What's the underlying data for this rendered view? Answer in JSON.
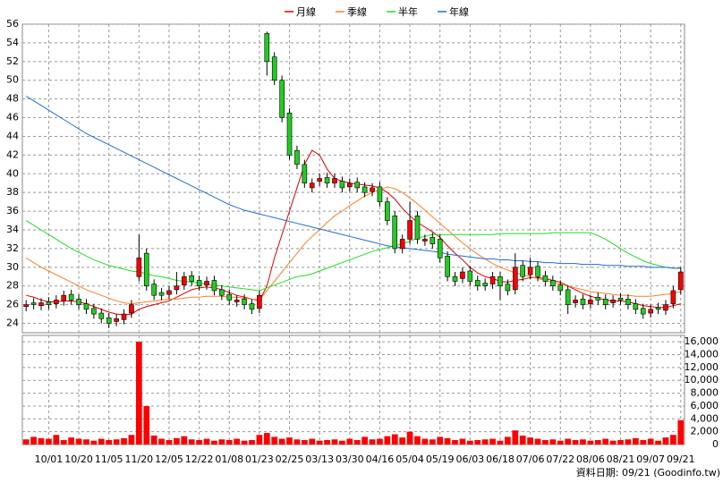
{
  "chart_data": [
    {
      "type": "candlestick",
      "categories": [
        null,
        null,
        null,
        "10/01",
        null,
        null,
        null,
        "10/20",
        null,
        null,
        null,
        "11/05",
        null,
        null,
        null,
        "11/20",
        null,
        null,
        null,
        "12/05",
        null,
        null,
        null,
        "12/22",
        null,
        null,
        null,
        "01/08",
        null,
        null,
        null,
        "01/23",
        null,
        null,
        null,
        "02/25",
        null,
        null,
        null,
        "03/13",
        null,
        null,
        null,
        "03/30",
        null,
        null,
        null,
        "04/16",
        null,
        null,
        null,
        "05/04",
        null,
        null,
        null,
        "05/19",
        null,
        null,
        null,
        "06/03",
        null,
        null,
        null,
        "06/18",
        null,
        null,
        null,
        "07/06",
        null,
        null,
        null,
        "07/22",
        null,
        null,
        null,
        "08/06",
        null,
        null,
        null,
        "08/21",
        null,
        null,
        null,
        "09/07",
        null,
        null,
        null,
        "09/21"
      ],
      "open": [
        25.8,
        26.2,
        25.9,
        26.3,
        26.1,
        26.4,
        27.1,
        26.6,
        26.1,
        25.6,
        25.1,
        24.6,
        24.2,
        24.4,
        25.1,
        29,
        31.5,
        28.2,
        27.3,
        27.1,
        27.6,
        28.1,
        29.1,
        28.6,
        28.1,
        28.6,
        27.6,
        27.1,
        26.3,
        26.6,
        26.1,
        25.6,
        55,
        52.5,
        50,
        46.5,
        42.5,
        41,
        38.5,
        39.2,
        39.6,
        39,
        39.2,
        38.6,
        39.1,
        38.6,
        38.1,
        38.6,
        37,
        35.5,
        32,
        33,
        35.5,
        32.8,
        33.2,
        33,
        31.2,
        29,
        28.8,
        29.6,
        28.6,
        28.3,
        28.2,
        29,
        28.2,
        27.6,
        30.2,
        29.2,
        30.1,
        29.1,
        28.6,
        28.1,
        27.6,
        26.2,
        26.6,
        26.1,
        26.8,
        26.6,
        26.2,
        26.7,
        26.6,
        26.1,
        25.6,
        25.1,
        25.7,
        25.4,
        26.1,
        27.6
      ],
      "high": [
        26.5,
        26.7,
        26.7,
        26.8,
        27,
        27.5,
        27.6,
        27.1,
        26.6,
        26.1,
        25.6,
        25.1,
        25,
        25.5,
        26.5,
        33.5,
        32,
        28.7,
        27.8,
        28,
        29.5,
        29.5,
        29.6,
        29.1,
        29,
        29.1,
        28.1,
        27.6,
        27,
        27.1,
        26.6,
        27.5,
        55.2,
        53,
        50.5,
        47,
        43,
        41.5,
        39.5,
        40,
        40.1,
        40,
        39.7,
        39.5,
        39.6,
        39.1,
        39,
        39.1,
        37.5,
        36,
        33.5,
        37,
        36,
        33.5,
        33.7,
        33.5,
        31.7,
        29.5,
        30,
        30.1,
        29.1,
        28.8,
        29.5,
        29.5,
        28.7,
        31.5,
        30.7,
        31,
        30.6,
        29.6,
        29.1,
        28.6,
        28.1,
        27,
        27.1,
        27,
        27.3,
        27.1,
        27,
        27.2,
        27.1,
        26.6,
        26.1,
        26,
        26.2,
        26.5,
        28,
        30
      ],
      "low": [
        25.3,
        25.5,
        25.4,
        25.5,
        25.6,
        25.9,
        26,
        25.5,
        25,
        24.5,
        24,
        23.5,
        23.7,
        23.9,
        24.6,
        28.5,
        27.5,
        26.5,
        26.5,
        26.6,
        27.1,
        27.6,
        28,
        27.5,
        27.6,
        27,
        26.5,
        26,
        25.8,
        25.5,
        25,
        25.1,
        50.5,
        49.5,
        45.5,
        41.5,
        40.5,
        38.5,
        38,
        38.7,
        38.5,
        38.5,
        38,
        38.1,
        38,
        37.5,
        37.6,
        36.5,
        34.5,
        31.5,
        31.5,
        32.5,
        32.5,
        32.3,
        32,
        30.5,
        28.5,
        28,
        28.3,
        28,
        27.5,
        27.5,
        27.7,
        26.5,
        27,
        27.1,
        28.5,
        28.7,
        28.5,
        28,
        27.5,
        27,
        25,
        25.7,
        25.5,
        25.6,
        26,
        25.5,
        25.7,
        26,
        25.5,
        25,
        24.5,
        24.6,
        25,
        24.9,
        25.6,
        27.1
      ],
      "close": [
        26,
        26,
        26.2,
        26,
        26.5,
        27,
        26.5,
        26,
        25.5,
        25,
        24.5,
        24,
        24.5,
        25,
        26,
        31,
        28,
        27,
        27,
        27.5,
        28,
        29,
        28.5,
        28,
        28.5,
        27.5,
        27,
        26.5,
        26.5,
        26,
        25.5,
        27,
        52,
        50,
        46,
        42,
        41,
        39,
        39,
        39.5,
        39,
        39.5,
        38.5,
        39,
        38.5,
        38,
        38.5,
        37,
        35,
        32,
        33,
        35,
        33,
        33,
        32.5,
        31,
        29,
        28.5,
        29.5,
        28.5,
        28,
        28,
        29,
        28,
        27.5,
        30,
        29,
        30,
        29,
        28.5,
        28,
        27.5,
        26,
        26.5,
        26,
        26.5,
        26.5,
        26,
        26.5,
        26.5,
        26,
        25.5,
        25,
        25.5,
        25.5,
        26,
        27.5,
        29.5
      ],
      "up_color": "#ff0000",
      "down_color": "#22cc22",
      "series": [
        {
          "name": "月線",
          "color": "#dd0000",
          "values": [
            27,
            26.8,
            26.5,
            26.3,
            26.3,
            26.4,
            26.4,
            26.3,
            26.1,
            25.8,
            25.5,
            25.2,
            25,
            24.9,
            25,
            25.5,
            25.8,
            26,
            26.2,
            26.4,
            26.8,
            27.2,
            27.6,
            27.8,
            27.9,
            27.8,
            27.6,
            27.3,
            27,
            26.8,
            26.6,
            26.4,
            28,
            31,
            33.5,
            36,
            38.5,
            41,
            42.5,
            42,
            40.5,
            39.5,
            39.2,
            39,
            38.9,
            38.8,
            38.7,
            38.5,
            38,
            37.3,
            36.3,
            35.5,
            34.8,
            34.3,
            33.8,
            33.2,
            32.3,
            31.5,
            30.8,
            30,
            29.4,
            29,
            28.8,
            28.5,
            28.4,
            28.6,
            28.7,
            28.9,
            28.9,
            28.8,
            28.6,
            28.4,
            28,
            27.6,
            27.2,
            26.9,
            26.7,
            26.5,
            26.4,
            26.4,
            26.3,
            26.1,
            25.9,
            25.8,
            25.7,
            25.7,
            25.9,
            26.1
          ]
        },
        {
          "name": "季線",
          "color": "#ff7f27",
          "values": [
            31,
            30.5,
            30,
            29.6,
            29.2,
            28.8,
            28.4,
            28,
            27.6,
            27.3,
            27,
            26.7,
            26.4,
            26.2,
            26.1,
            26.2,
            26.3,
            26.4,
            26.5,
            26.6,
            26.6,
            26.7,
            26.8,
            26.8,
            26.9,
            26.9,
            26.9,
            26.8,
            26.8,
            26.7,
            26.6,
            26.5,
            27.5,
            28.5,
            29.5,
            30.5,
            31.5,
            32.5,
            33.3,
            34,
            34.8,
            35.5,
            36,
            36.6,
            37.1,
            37.6,
            38,
            38.3,
            38.6,
            38.4,
            38,
            37.4,
            36.8,
            36.1,
            35.4,
            34.7,
            34,
            33.3,
            32.6,
            32,
            31.4,
            30.9,
            30.4,
            30,
            29.7,
            29.4,
            29.2,
            29,
            28.8,
            28.6,
            28.4,
            28.2,
            28,
            27.8,
            27.6,
            27.4,
            27.3,
            27.2,
            27.1,
            27,
            27,
            26.9,
            26.9,
            26.9,
            27,
            27.1,
            27.2,
            27.4
          ]
        },
        {
          "name": "半年",
          "color": "#22dd22",
          "values": [
            35,
            34.5,
            34,
            33.5,
            33,
            32.5,
            32,
            31.6,
            31.2,
            30.8,
            30.5,
            30.2,
            30,
            29.8,
            29.6,
            29.5,
            29.3,
            29.1,
            29,
            28.8,
            28.6,
            28.5,
            28.4,
            28.3,
            28.2,
            28.1,
            28,
            27.9,
            27.8,
            27.7,
            27.6,
            27.5,
            27.8,
            28.1,
            28.4,
            28.7,
            29,
            29.1,
            29.3,
            29.6,
            29.9,
            30.2,
            30.5,
            30.8,
            31.1,
            31.4,
            31.7,
            31.9,
            32.1,
            32.3,
            32.5,
            32.8,
            33.1,
            33.3,
            33.5,
            33.5,
            33.5,
            33.5,
            33.5,
            33.5,
            33.5,
            33.5,
            33.5,
            33.6,
            33.6,
            33.6,
            33.6,
            33.6,
            33.6,
            33.6,
            33.7,
            33.7,
            33.7,
            33.7,
            33.7,
            33.7,
            33.4,
            33,
            32.5,
            32,
            31.5,
            31.1,
            30.7,
            30.4,
            30.2,
            30,
            29.9,
            29.9
          ]
        },
        {
          "name": "年線",
          "color": "#1f6fd0",
          "values": [
            48.3,
            47.8,
            47.3,
            46.8,
            46.3,
            45.8,
            45.3,
            44.8,
            44.3,
            43.9,
            43.5,
            43.1,
            42.7,
            42.3,
            41.9,
            41.5,
            41.1,
            40.7,
            40.3,
            39.9,
            39.5,
            39.1,
            38.7,
            38.3,
            37.9,
            37.5,
            37.1,
            36.7,
            36.4,
            36.1,
            35.9,
            35.7,
            35.5,
            35.3,
            35.1,
            34.9,
            34.7,
            34.5,
            34.3,
            34.1,
            33.9,
            33.7,
            33.5,
            33.3,
            33.1,
            32.9,
            32.7,
            32.5,
            32.3,
            32.2,
            32.1,
            32,
            31.9,
            31.8,
            31.7,
            31.6,
            31.4,
            31.3,
            31.2,
            31.1,
            31,
            30.9,
            30.9,
            30.8,
            30.8,
            30.7,
            30.7,
            30.6,
            30.6,
            30.5,
            30.5,
            30.4,
            30.4,
            30.4,
            30.3,
            30.3,
            30.3,
            30.2,
            30.2,
            30.2,
            30.1,
            30.1,
            30.1,
            30,
            30,
            30,
            29.9,
            29.9
          ]
        }
      ],
      "ylim": [
        23,
        56
      ],
      "yticks": [
        24,
        26,
        28,
        30,
        32,
        34,
        36,
        38,
        40,
        42,
        44,
        46,
        48,
        50,
        52,
        54,
        56
      ],
      "grid": true,
      "legend": "top",
      "footer": "資料日期: 09/21 (Goodinfo.tw)"
    },
    {
      "type": "bar",
      "values": [
        800,
        1200,
        1000,
        900,
        1500,
        700,
        1100,
        900,
        800,
        600,
        900,
        700,
        800,
        1000,
        1500,
        16000,
        6000,
        1400,
        900,
        700,
        1000,
        1300,
        800,
        700,
        900,
        600,
        800,
        700,
        900,
        600,
        700,
        1500,
        1800,
        1200,
        900,
        1100,
        800,
        700,
        900,
        600,
        700,
        800,
        600,
        900,
        700,
        1200,
        800,
        900,
        1300,
        1600,
        1100,
        2000,
        1300,
        900,
        800,
        1200,
        1000,
        700,
        900,
        600,
        700,
        800,
        900,
        600,
        1200,
        2200,
        1400,
        1100,
        900,
        700,
        800,
        600,
        900,
        700,
        800,
        600,
        700,
        900,
        600,
        700,
        800,
        1000,
        700,
        900,
        600,
        1100,
        1500,
        3800
      ],
      "color": "#ff0000",
      "ylim": [
        0,
        17000
      ],
      "yticks": [
        0,
        {
          "value": 2000,
          "label": "2,000"
        },
        {
          "value": 4000,
          "label": "4,000"
        },
        {
          "value": 6000,
          "label": "6,000"
        },
        {
          "value": 8000,
          "label": "8,000"
        },
        {
          "value": 10000,
          "label": "10,000"
        },
        {
          "value": 12000,
          "label": "12,000"
        },
        {
          "value": 14000,
          "label": "14,000"
        },
        {
          "value": 16000,
          "label": "16,000"
        }
      ],
      "grid": true
    }
  ]
}
